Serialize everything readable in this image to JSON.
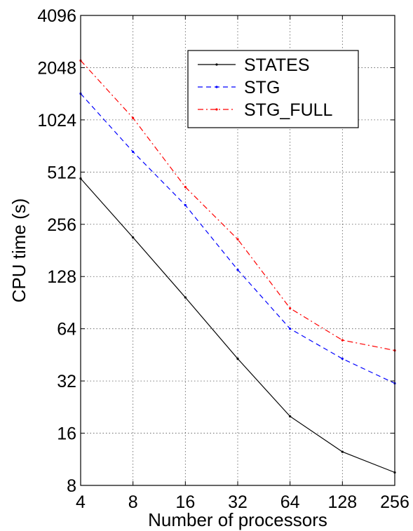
{
  "chart_data": {
    "type": "line",
    "title": "",
    "xlabel": "Number of processors",
    "ylabel": "CPU time (s)",
    "x_scale": "log2",
    "y_scale": "log2",
    "x": [
      4,
      8,
      16,
      32,
      64,
      128,
      256
    ],
    "x_tick_labels": [
      "4",
      "8",
      "16",
      "32",
      "64",
      "128",
      "256"
    ],
    "y_tick_values": [
      8,
      16,
      32,
      64,
      128,
      256,
      512,
      1024,
      2048,
      4096
    ],
    "y_tick_labels": [
      "8",
      "16",
      "32",
      "64",
      "128",
      "256",
      "512",
      "1024",
      "2048",
      "4096"
    ],
    "xlim": [
      4,
      256
    ],
    "ylim": [
      8,
      4096
    ],
    "grid": true,
    "legend_position": "top-right",
    "series": [
      {
        "name": "STATES",
        "color": "#000000",
        "style": "solid",
        "values": [
          470,
          215,
          97,
          43,
          20,
          12.5,
          9.5
        ]
      },
      {
        "name": "STG",
        "color": "#0000ff",
        "style": "dashed",
        "values": [
          1450,
          670,
          330,
          140,
          64,
          43,
          31
        ]
      },
      {
        "name": "STG_FULL",
        "color": "#ff0000",
        "style": "dashdot",
        "values": [
          2250,
          1050,
          420,
          210,
          84,
          55,
          48
        ]
      }
    ]
  }
}
